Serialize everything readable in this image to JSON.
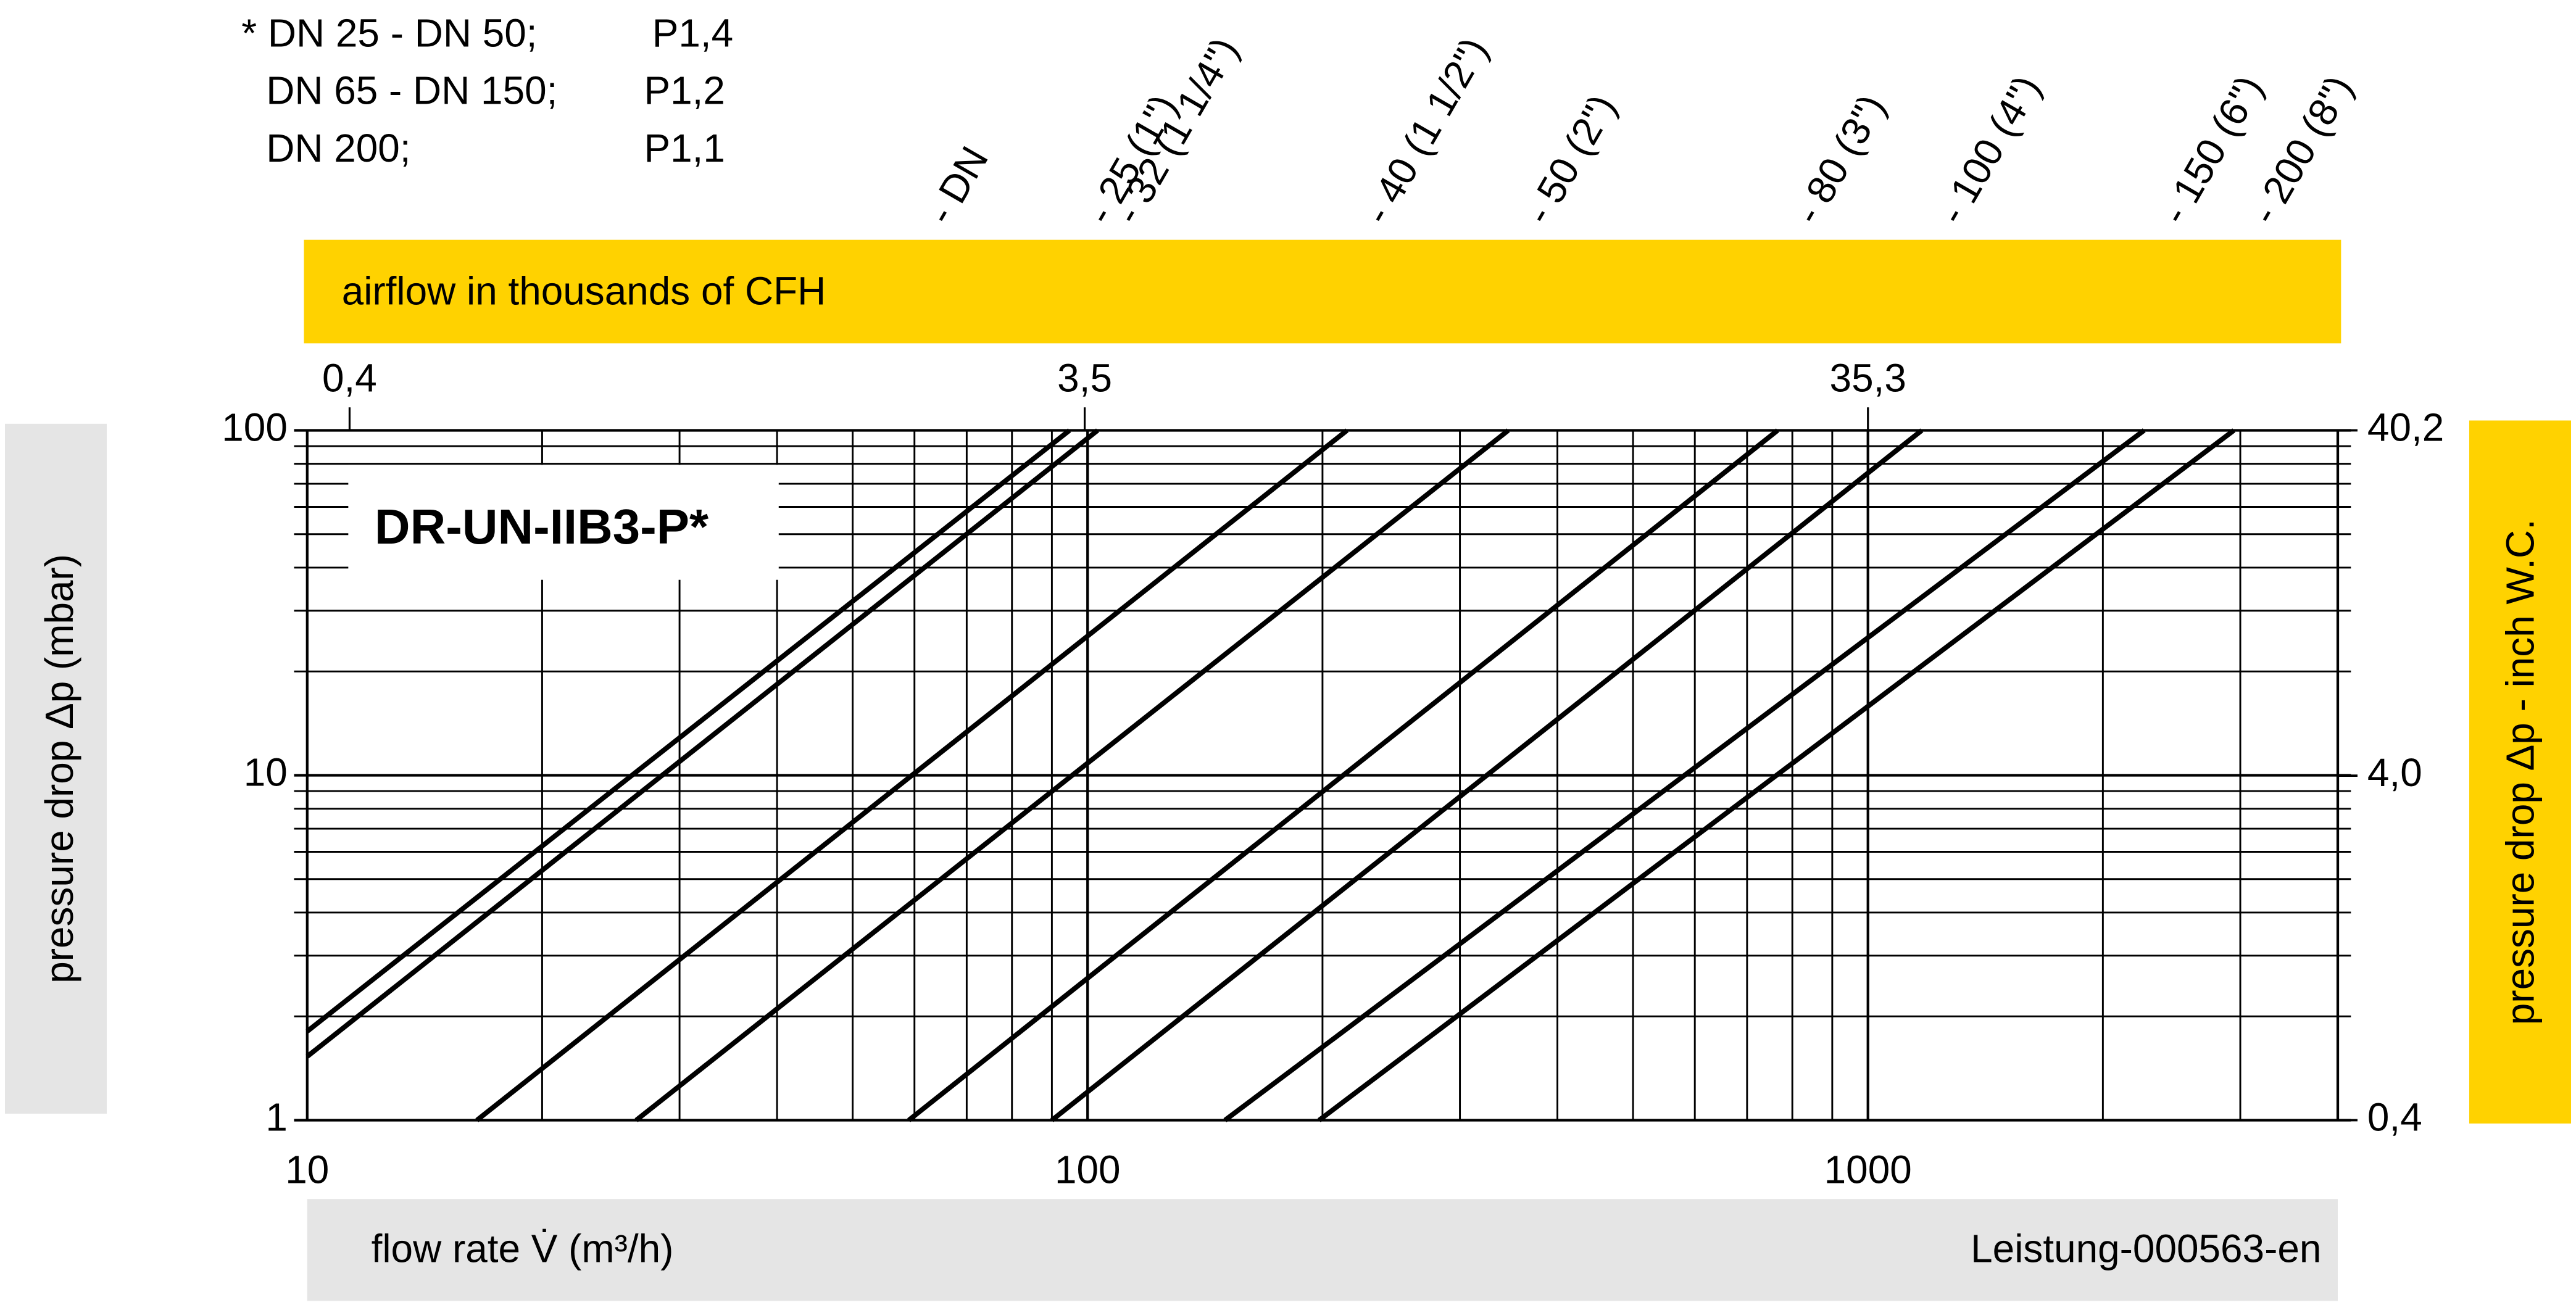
{
  "chart_data": {
    "type": "line",
    "title": "DR-UN-IIB3-P*",
    "notes": [
      [
        "* DN 25 - DN 50;",
        "P1,4"
      ],
      [
        "DN 65 - DN 150;",
        "P1,2"
      ],
      [
        "DN 200;",
        "P1,1"
      ]
    ],
    "dn_header": "- DN",
    "xlabel": "flow rate V̇ (m³/h)",
    "ylabel": "pressure drop Δp (mbar)",
    "y2label": "pressure drop Δp - inch W.C.",
    "x2label": "airflow in thousands of CFH",
    "footer": "Leistung-000563-en",
    "log_x": true,
    "log_y": true,
    "grid": true,
    "xlim": [
      10,
      4000
    ],
    "xticks": [
      10,
      100,
      1000
    ],
    "ylim": [
      1,
      100
    ],
    "yticks": [
      1,
      10,
      100
    ],
    "x2lim": [
      0.353,
      141.2
    ],
    "x2ticks": [
      {
        "value": 0.4,
        "label": "0,4"
      },
      {
        "value": 3.5,
        "label": "3,5"
      },
      {
        "value": 35.3,
        "label": "35,3"
      }
    ],
    "y2lim": [
      0.4,
      40.2
    ],
    "y2ticks": [
      {
        "value": 0.4,
        "label": "0,4"
      },
      {
        "value": 4.0,
        "label": "4,0"
      },
      {
        "value": 40.2,
        "label": "40,2"
      }
    ],
    "series": [
      {
        "name": "- 25 (1\")",
        "color": "#000000",
        "x": [
          10,
          94.8
        ],
        "values": [
          1.81,
          100
        ]
      },
      {
        "name": "- 32 (1 1/4\")",
        "color": "#000000",
        "x": [
          10,
          103
        ],
        "values": [
          1.53,
          100
        ]
      },
      {
        "name": "- 40 (1 1/2\")",
        "color": "#000000",
        "x": [
          16.5,
          215
        ],
        "values": [
          1,
          100
        ]
      },
      {
        "name": "- 50 (2\")",
        "color": "#000000",
        "x": [
          26.4,
          346
        ],
        "values": [
          1,
          100
        ]
      },
      {
        "name": "- 80 (3\")",
        "color": "#000000",
        "x": [
          59,
          766
        ],
        "values": [
          1,
          100
        ]
      },
      {
        "name": "- 100 (4\")",
        "color": "#000000",
        "x": [
          90,
          1172
        ],
        "values": [
          1,
          100
        ]
      },
      {
        "name": "- 150 (6\")",
        "color": "#000000",
        "x": [
          150,
          2259
        ],
        "values": [
          1,
          100
        ]
      },
      {
        "name": "- 200 (8\")",
        "color": "#000000",
        "x": [
          198,
          2944
        ],
        "values": [
          1,
          100
        ]
      }
    ]
  }
}
